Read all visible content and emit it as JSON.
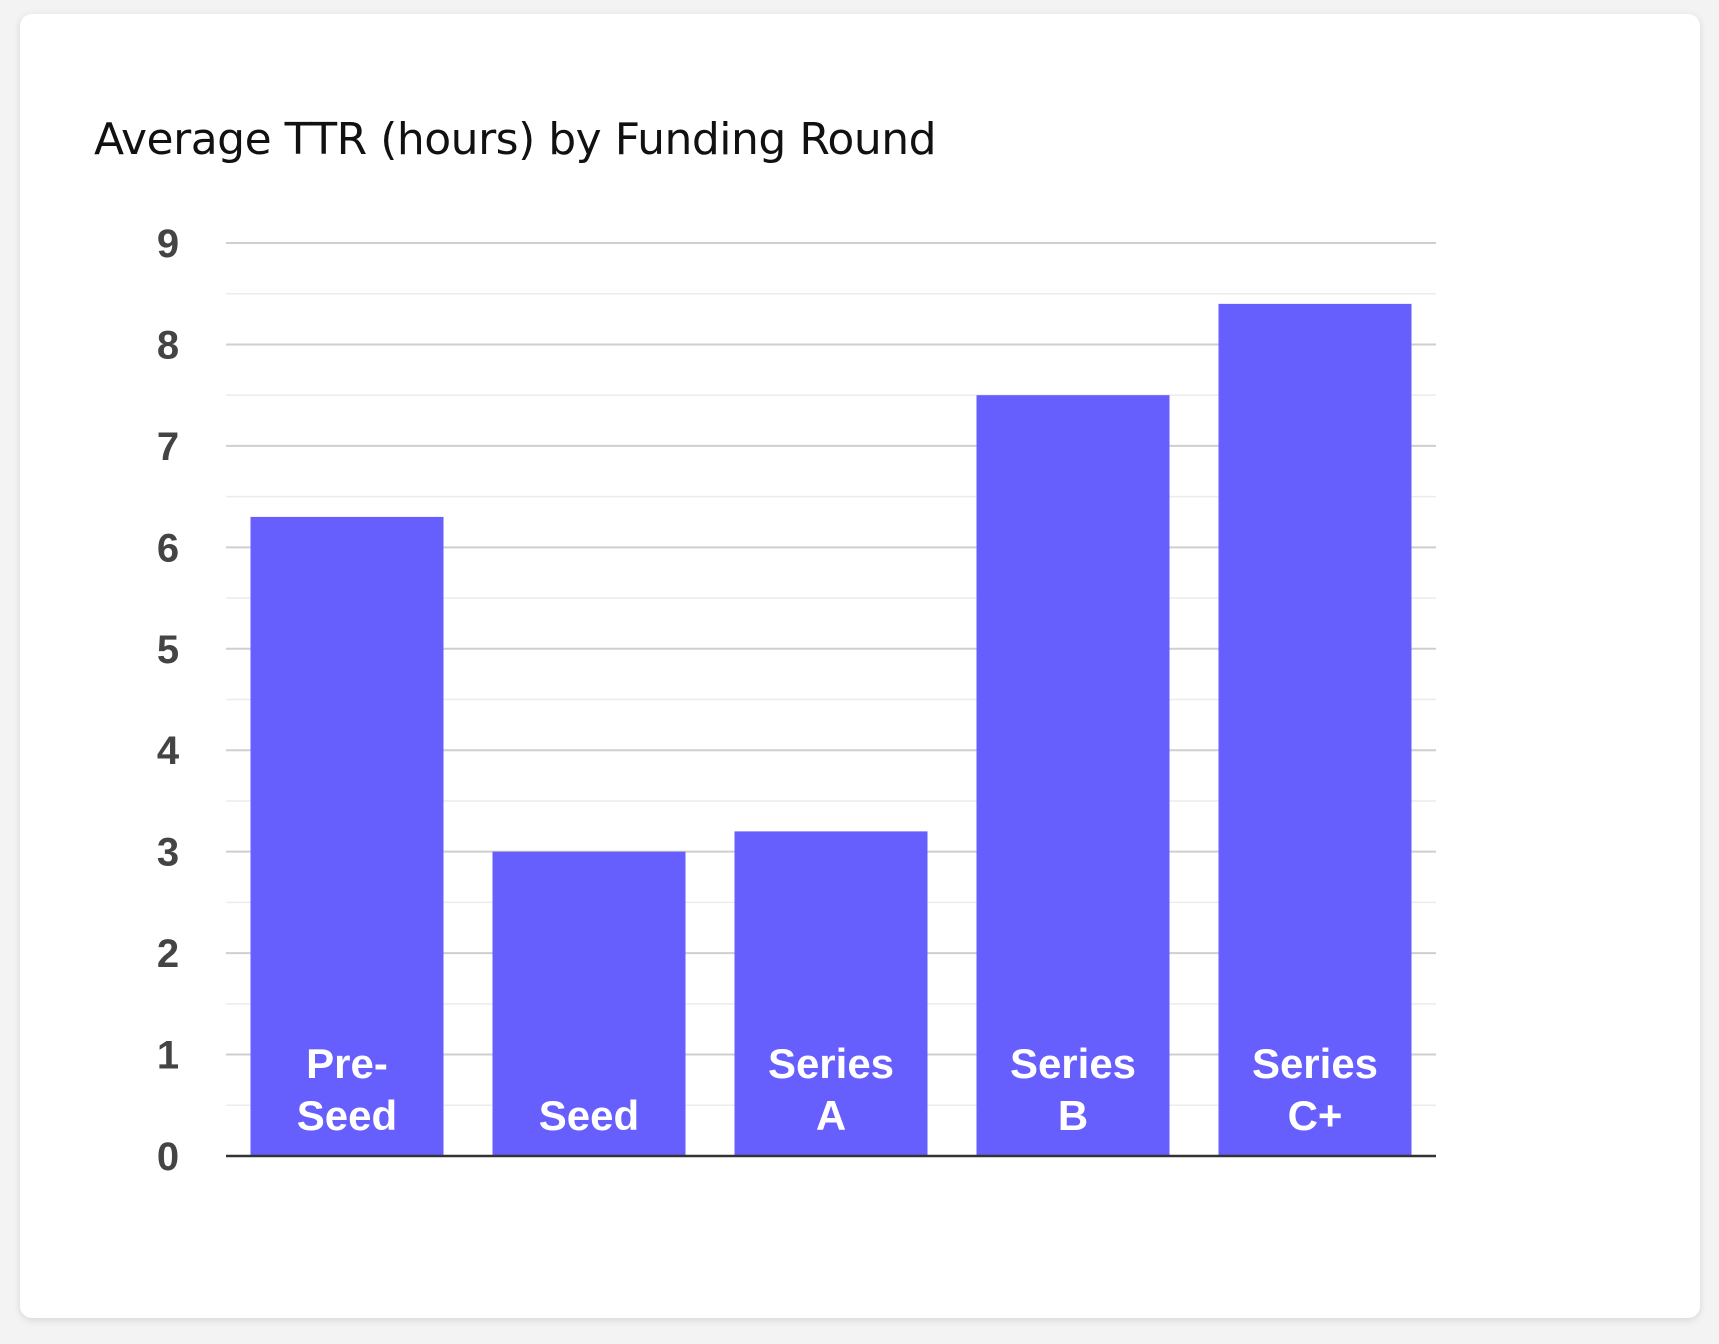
{
  "chart_data": {
    "type": "bar",
    "title": "Average TTR (hours) by Funding Round",
    "xlabel": "",
    "ylabel": "",
    "categories": [
      [
        "Pre-",
        "Seed"
      ],
      [
        "Seed"
      ],
      [
        "Series",
        "A"
      ],
      [
        "Series",
        "B"
      ],
      [
        "Series",
        "C+"
      ]
    ],
    "values": [
      6.3,
      3.0,
      3.2,
      7.5,
      8.4
    ],
    "ylim": [
      0,
      9
    ],
    "yticks": [
      "0",
      "1",
      "2",
      "3",
      "4",
      "5",
      "6",
      "7",
      "8",
      "9"
    ],
    "minor_gridlines": true,
    "legend": "none",
    "bar_color": "#665ffe",
    "label_color": "#ffffff",
    "tick_color": "#444444"
  }
}
